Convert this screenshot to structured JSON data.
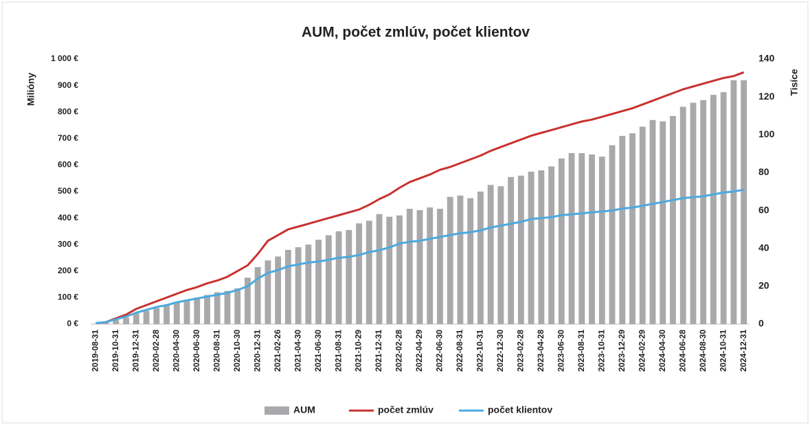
{
  "chart_data": {
    "type": "combo",
    "title": "AUM, počet zmlúv, počet klientov",
    "y_label": "Milióny",
    "y2_label": "Tisíce",
    "categories": [
      "2019-08-31",
      null,
      "2019-10-31",
      null,
      "2019-12-31",
      null,
      "2020-02-28",
      null,
      "2020-04-30",
      null,
      "2020-06-30",
      null,
      "2020-08-31",
      null,
      "2020-10-30",
      null,
      "2020-12-31",
      null,
      "2021-02-26",
      null,
      "2021-04-30",
      null,
      "2021-06-30",
      null,
      "2021-08-31",
      null,
      "2021-10-29",
      null,
      "2021-12-31",
      null,
      "2022-02-28",
      null,
      "2022-04-29",
      null,
      "2022-06-30",
      null,
      "2022-08-31",
      null,
      "2022-10-31",
      null,
      "2022-12-30",
      null,
      "2023-02-28",
      null,
      "2023-04-28",
      null,
      "2023-06-30",
      null,
      "2023-08-31",
      null,
      "2023-10-31",
      null,
      "2023-12-29",
      null,
      "2024-02-29",
      null,
      "2024-04-30",
      null,
      "2024-06-28",
      null,
      "2024-08-30",
      null,
      "2024-10-31",
      null,
      "2024-12-31"
    ],
    "series": [
      {
        "name": "AUM",
        "type": "bar",
        "axis": "y",
        "color": "#a9a9ab",
        "values": [
          0,
          5,
          15,
          25,
          40,
          50,
          60,
          70,
          80,
          90,
          100,
          110,
          120,
          125,
          135,
          175,
          215,
          240,
          255,
          280,
          290,
          300,
          318,
          335,
          350,
          355,
          380,
          390,
          415,
          405,
          410,
          435,
          430,
          440,
          435,
          480,
          485,
          475,
          500,
          525,
          520,
          555,
          560,
          575,
          580,
          595,
          625,
          645,
          645,
          640,
          632,
          675,
          710,
          720,
          745,
          770,
          765,
          785,
          820,
          835,
          845,
          865,
          875,
          920,
          920
        ]
      },
      {
        "name": "počet zmlúv",
        "type": "line",
        "axis": "y2",
        "color": "#c8312e",
        "values": [
          0.5,
          1,
          3,
          5,
          8,
          10,
          12,
          14,
          16,
          18,
          19.5,
          21.5,
          23,
          25,
          28,
          31,
          37,
          44,
          47,
          50,
          51.5,
          53,
          54.5,
          56,
          57.5,
          59,
          60.5,
          63,
          66,
          68.5,
          72,
          75,
          77,
          79,
          81.5,
          83,
          85,
          87,
          89,
          91.5,
          93.5,
          95.5,
          97.5,
          99.5,
          101,
          102.5,
          104,
          105.5,
          107,
          108,
          109.5,
          111,
          112.5,
          114,
          116,
          118,
          120,
          122,
          124,
          125.5,
          127,
          128.5,
          130,
          131,
          133
        ]
      },
      {
        "name": "počet klientov",
        "type": "line",
        "axis": "y2",
        "color": "#4ba9e0",
        "values": [
          0.5,
          1,
          2.5,
          4,
          6,
          7.5,
          9,
          10,
          11.5,
          12.5,
          13.5,
          14.5,
          15.5,
          16.5,
          18,
          20,
          24,
          27,
          28.5,
          30.5,
          31.5,
          32.5,
          33,
          34,
          35,
          35.5,
          36.5,
          38,
          39,
          40.5,
          42.5,
          43.5,
          44,
          45,
          46,
          47,
          48,
          48.5,
          49.5,
          51,
          52,
          53,
          54,
          55.5,
          56,
          56.5,
          57.5,
          58,
          58.5,
          59,
          59.5,
          60,
          61,
          61.5,
          62.5,
          63.5,
          64.5,
          65.5,
          66.5,
          67,
          67.5,
          68.5,
          69.5,
          70,
          71
        ]
      }
    ],
    "ylim": [
      0,
      1000
    ],
    "yticks": [
      {
        "value": 0,
        "label": "0 €"
      },
      {
        "value": 100,
        "label": "100 €"
      },
      {
        "value": 200,
        "label": "200 €"
      },
      {
        "value": 300,
        "label": "300 €"
      },
      {
        "value": 400,
        "label": "400 €"
      },
      {
        "value": 500,
        "label": "500 €"
      },
      {
        "value": 600,
        "label": "600 €"
      },
      {
        "value": 700,
        "label": "700 €"
      },
      {
        "value": 800,
        "label": "800 €"
      },
      {
        "value": 900,
        "label": "900 €"
      },
      {
        "value": 1000,
        "label": "1 000 €"
      }
    ],
    "y2lim": [
      0,
      140
    ],
    "y2ticks": [
      0,
      20,
      40,
      60,
      80,
      100,
      120,
      140
    ],
    "grid": false,
    "legend": "bottom"
  }
}
